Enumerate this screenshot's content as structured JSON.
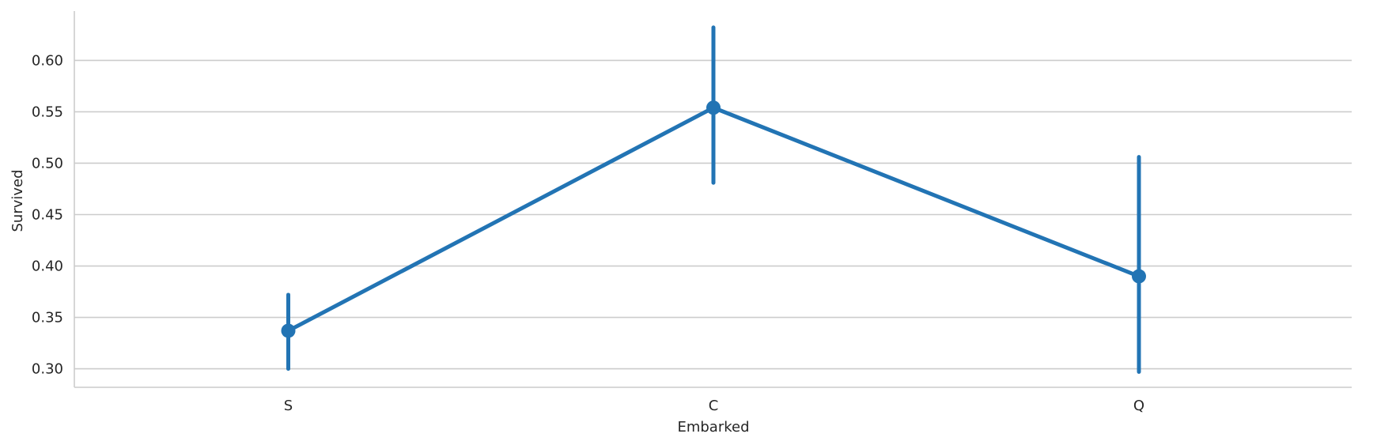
{
  "chart_data": {
    "type": "line",
    "xlabel": "Embarked",
    "ylabel": "Survived",
    "categories": [
      "S",
      "C",
      "Q"
    ],
    "values": [
      0.337,
      0.554,
      0.39
    ],
    "ci_low": [
      0.3,
      0.481,
      0.297
    ],
    "ci_high": [
      0.372,
      0.632,
      0.506
    ],
    "ylim": [
      0.282,
      0.648
    ],
    "yticks": [
      0.3,
      0.35,
      0.4,
      0.45,
      0.5,
      0.55,
      0.6
    ],
    "ytick_labels": [
      "0.30",
      "0.35",
      "0.40",
      "0.45",
      "0.50",
      "0.55",
      "0.60"
    ],
    "grid": "horizontal",
    "color": "#2274b4",
    "grid_color": "#cccccc",
    "spine_color": "#cccccc"
  }
}
